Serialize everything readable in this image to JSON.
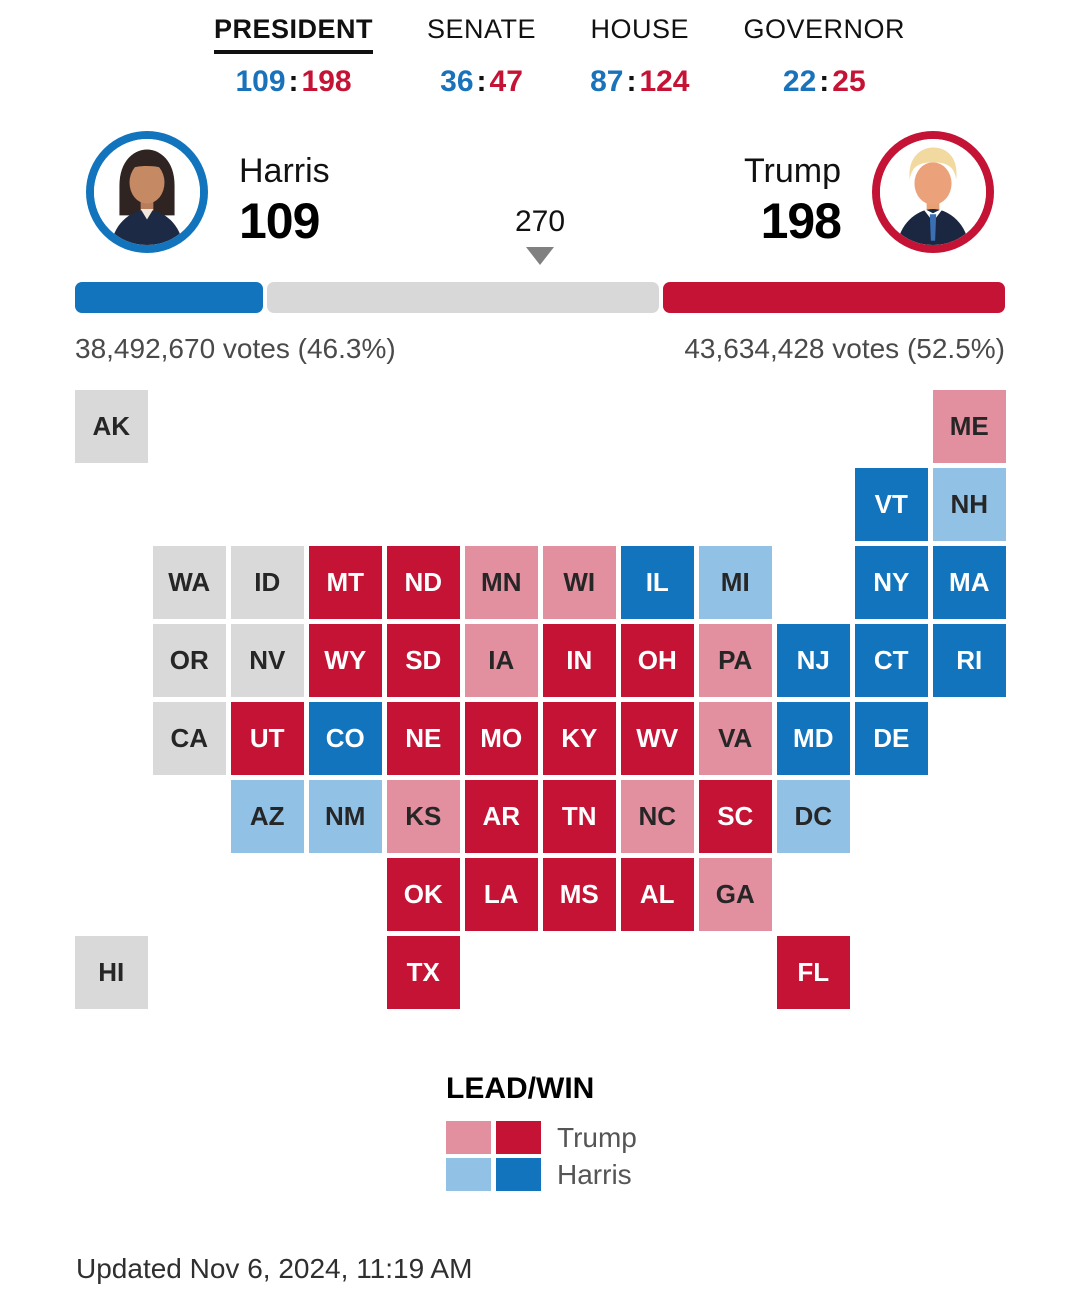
{
  "tabs": [
    {
      "label": "PRESIDENT",
      "active": true,
      "dem": "109",
      "rep": "198"
    },
    {
      "label": "SENATE",
      "active": false,
      "dem": "36",
      "rep": "47"
    },
    {
      "label": "HOUSE",
      "active": false,
      "dem": "87",
      "rep": "124"
    },
    {
      "label": "GOVERNOR",
      "active": false,
      "dem": "22",
      "rep": "25"
    }
  ],
  "candidates": {
    "harris": {
      "name": "Harris",
      "ev": "109",
      "votes": "38,492,670 votes (46.3%)"
    },
    "trump": {
      "name": "Trump",
      "ev": "198",
      "votes": "43,634,428 votes (52.5%)"
    }
  },
  "threshold": {
    "label": "270",
    "value": 270,
    "total_ev": 538
  },
  "colors": {
    "dem_win": "#1274bd",
    "dem_lead": "#92c1e6",
    "rep_win": "#c41334",
    "rep_lead": "#e28fa0",
    "undecided": "#d9d9d9"
  },
  "legend": {
    "title": "LEAD/WIN",
    "rows": [
      {
        "name": "Trump",
        "lead_color": "#e28fa0",
        "win_color": "#c41334"
      },
      {
        "name": "Harris",
        "lead_color": "#92c1e6",
        "win_color": "#1274bd"
      }
    ]
  },
  "footer": {
    "updated": "Updated Nov 6, 2024, 11:19 AM"
  },
  "chart_data": {
    "type": "heatmap",
    "subtype": "electoral-cartogram",
    "legend_title": "LEAD/WIN",
    "legend_entries": [
      "Trump lead",
      "Trump win",
      "Harris lead",
      "Harris win"
    ],
    "threshold": 270,
    "electoral_votes": {
      "Harris": 109,
      "Trump": 198
    },
    "popular_vote": {
      "Harris": {
        "votes": 38492670,
        "pct": 46.3
      },
      "Trump": {
        "votes": 43634428,
        "pct": 52.5
      }
    },
    "races": {
      "president": {
        "dem": 109,
        "rep": 198
      },
      "senate": {
        "dem": 36,
        "rep": 47
      },
      "house": {
        "dem": 87,
        "rep": 124
      },
      "governor": {
        "dem": 22,
        "rep": 25
      }
    },
    "states": [
      {
        "code": "AK",
        "row": 1,
        "col": 1,
        "status": "none"
      },
      {
        "code": "ME",
        "row": 1,
        "col": 12,
        "status": "trump_lead"
      },
      {
        "code": "VT",
        "row": 2,
        "col": 11,
        "status": "harris_win"
      },
      {
        "code": "NH",
        "row": 2,
        "col": 12,
        "status": "harris_lead"
      },
      {
        "code": "WA",
        "row": 3,
        "col": 2,
        "status": "none"
      },
      {
        "code": "ID",
        "row": 3,
        "col": 3,
        "status": "none"
      },
      {
        "code": "MT",
        "row": 3,
        "col": 4,
        "status": "trump_win"
      },
      {
        "code": "ND",
        "row": 3,
        "col": 5,
        "status": "trump_win"
      },
      {
        "code": "MN",
        "row": 3,
        "col": 6,
        "status": "trump_lead"
      },
      {
        "code": "WI",
        "row": 3,
        "col": 7,
        "status": "trump_lead"
      },
      {
        "code": "IL",
        "row": 3,
        "col": 8,
        "status": "harris_win"
      },
      {
        "code": "MI",
        "row": 3,
        "col": 9,
        "status": "harris_lead"
      },
      {
        "code": "NY",
        "row": 3,
        "col": 11,
        "status": "harris_win"
      },
      {
        "code": "MA",
        "row": 3,
        "col": 12,
        "status": "harris_win"
      },
      {
        "code": "OR",
        "row": 4,
        "col": 2,
        "status": "none"
      },
      {
        "code": "NV",
        "row": 4,
        "col": 3,
        "status": "none"
      },
      {
        "code": "WY",
        "row": 4,
        "col": 4,
        "status": "trump_win"
      },
      {
        "code": "SD",
        "row": 4,
        "col": 5,
        "status": "trump_win"
      },
      {
        "code": "IA",
        "row": 4,
        "col": 6,
        "status": "trump_lead"
      },
      {
        "code": "IN",
        "row": 4,
        "col": 7,
        "status": "trump_win"
      },
      {
        "code": "OH",
        "row": 4,
        "col": 8,
        "status": "trump_win"
      },
      {
        "code": "PA",
        "row": 4,
        "col": 9,
        "status": "trump_lead"
      },
      {
        "code": "NJ",
        "row": 4,
        "col": 10,
        "status": "harris_win"
      },
      {
        "code": "CT",
        "row": 4,
        "col": 11,
        "status": "harris_win"
      },
      {
        "code": "RI",
        "row": 4,
        "col": 12,
        "status": "harris_win"
      },
      {
        "code": "CA",
        "row": 5,
        "col": 2,
        "status": "none"
      },
      {
        "code": "UT",
        "row": 5,
        "col": 3,
        "status": "trump_win"
      },
      {
        "code": "CO",
        "row": 5,
        "col": 4,
        "status": "harris_win"
      },
      {
        "code": "NE",
        "row": 5,
        "col": 5,
        "status": "trump_win"
      },
      {
        "code": "MO",
        "row": 5,
        "col": 6,
        "status": "trump_win"
      },
      {
        "code": "KY",
        "row": 5,
        "col": 7,
        "status": "trump_win"
      },
      {
        "code": "WV",
        "row": 5,
        "col": 8,
        "status": "trump_win"
      },
      {
        "code": "VA",
        "row": 5,
        "col": 9,
        "status": "trump_lead"
      },
      {
        "code": "MD",
        "row": 5,
        "col": 10,
        "status": "harris_win"
      },
      {
        "code": "DE",
        "row": 5,
        "col": 11,
        "status": "harris_win"
      },
      {
        "code": "AZ",
        "row": 6,
        "col": 3,
        "status": "harris_lead"
      },
      {
        "code": "NM",
        "row": 6,
        "col": 4,
        "status": "harris_lead"
      },
      {
        "code": "KS",
        "row": 6,
        "col": 5,
        "status": "trump_lead"
      },
      {
        "code": "AR",
        "row": 6,
        "col": 6,
        "status": "trump_win"
      },
      {
        "code": "TN",
        "row": 6,
        "col": 7,
        "status": "trump_win"
      },
      {
        "code": "NC",
        "row": 6,
        "col": 8,
        "status": "trump_lead"
      },
      {
        "code": "SC",
        "row": 6,
        "col": 9,
        "status": "trump_win"
      },
      {
        "code": "DC",
        "row": 6,
        "col": 10,
        "status": "harris_lead"
      },
      {
        "code": "OK",
        "row": 7,
        "col": 5,
        "status": "trump_win"
      },
      {
        "code": "LA",
        "row": 7,
        "col": 6,
        "status": "trump_win"
      },
      {
        "code": "MS",
        "row": 7,
        "col": 7,
        "status": "trump_win"
      },
      {
        "code": "AL",
        "row": 7,
        "col": 8,
        "status": "trump_win"
      },
      {
        "code": "GA",
        "row": 7,
        "col": 9,
        "status": "trump_lead"
      },
      {
        "code": "HI",
        "row": 8,
        "col": 1,
        "status": "none"
      },
      {
        "code": "TX",
        "row": 8,
        "col": 5,
        "status": "trump_win"
      },
      {
        "code": "FL",
        "row": 8,
        "col": 10,
        "status": "trump_win"
      }
    ]
  }
}
